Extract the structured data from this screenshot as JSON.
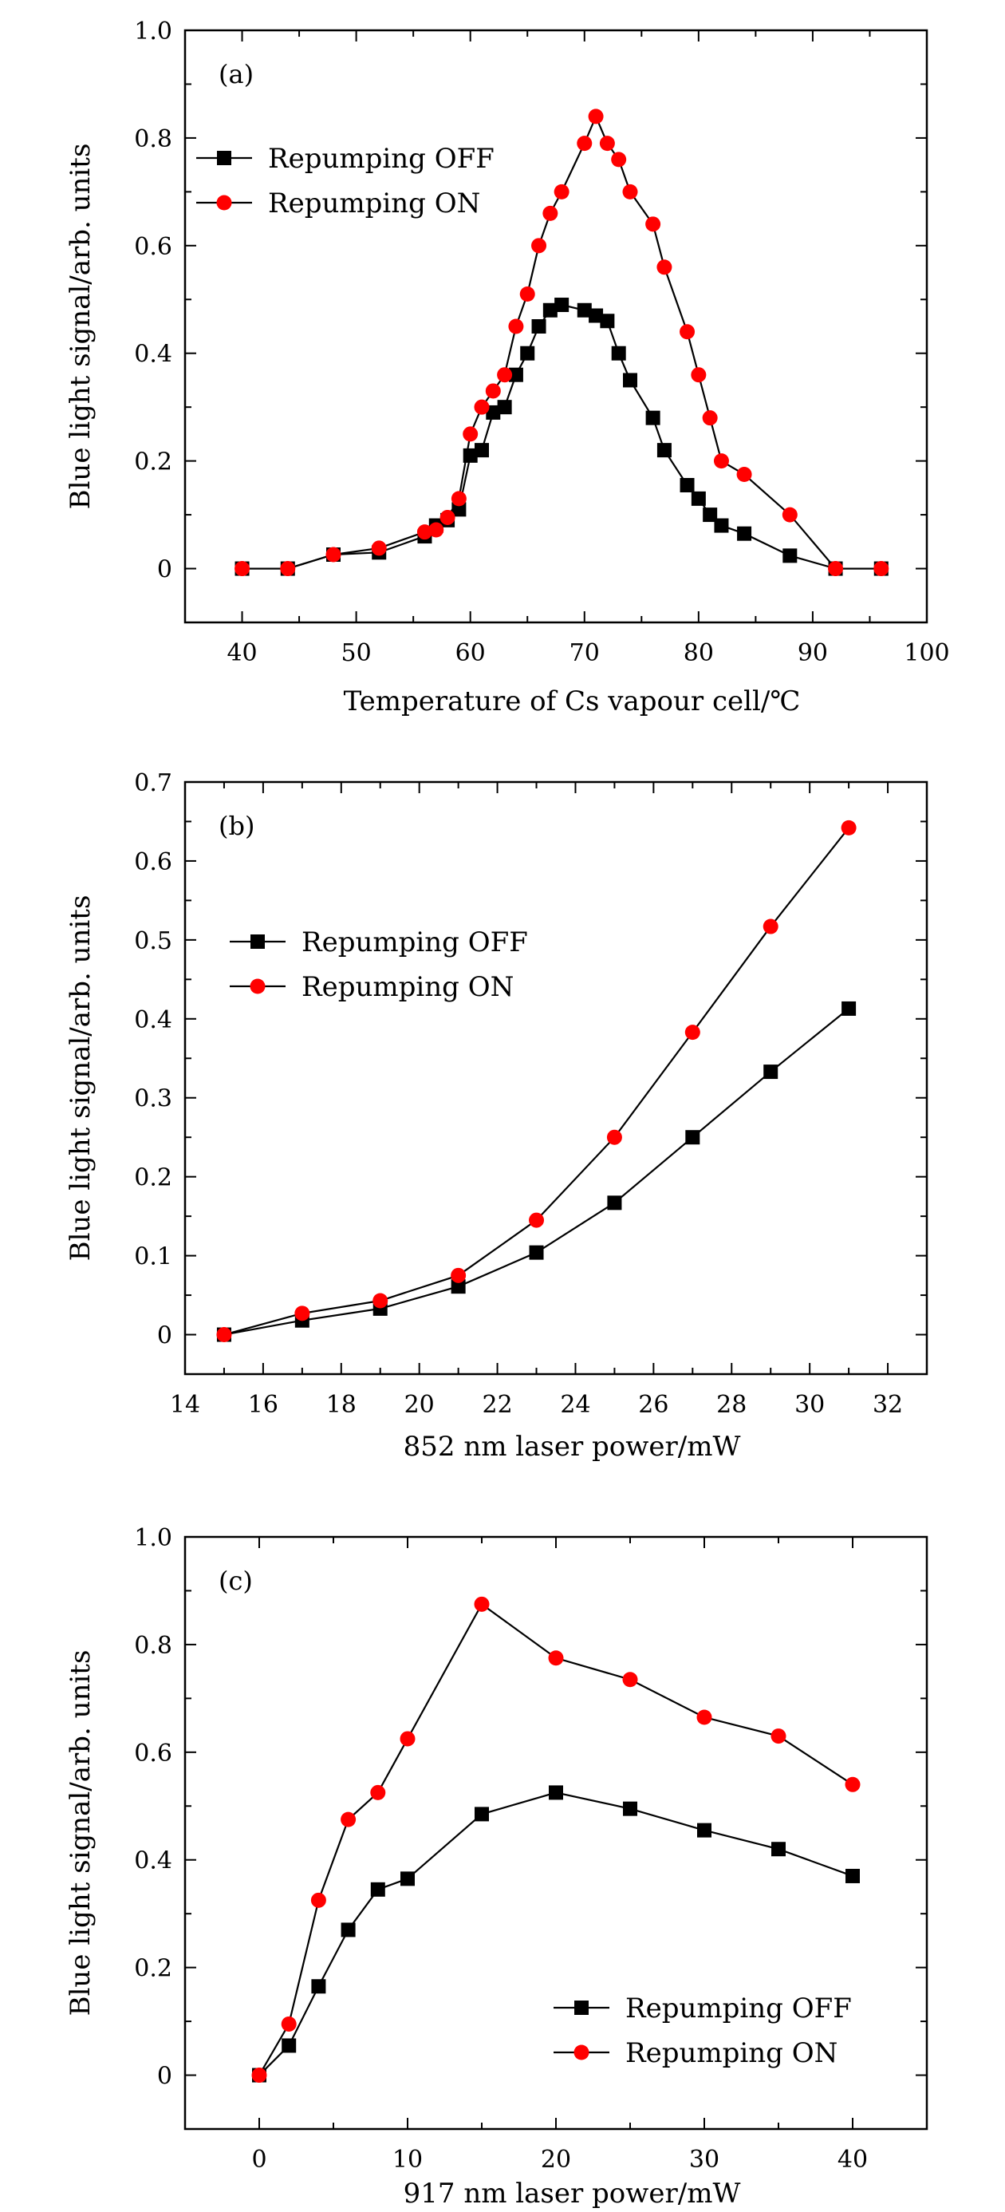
{
  "chart_data": [
    {
      "type": "line",
      "panel_label": "(a)",
      "xlabel": "Temperature of Cs vapour cell/℃",
      "ylabel": "Blue light signal/arb. units",
      "xlim": [
        35,
        100
      ],
      "ylim": [
        -0.1,
        1.0
      ],
      "xticks": [
        40,
        50,
        60,
        70,
        80,
        90,
        100
      ],
      "xtick_labels": [
        "40",
        "50",
        "60",
        "70",
        "80",
        "90",
        "100"
      ],
      "xminor": [
        35,
        45,
        55,
        65,
        75,
        85,
        95
      ],
      "yticks": [
        0,
        0.2,
        0.4,
        0.6,
        0.8,
        1.0
      ],
      "ytick_labels": [
        "0",
        "0.2",
        "0.4",
        "0.6",
        "0.8",
        "1.0"
      ],
      "yminor": [
        -0.1,
        0.1,
        0.3,
        0.5,
        0.7,
        0.9
      ],
      "legend_position": "upper-left",
      "series": [
        {
          "name": "Repumping OFF",
          "marker": "square",
          "color": "#000000",
          "x": [
            40,
            44,
            48,
            52,
            56,
            57,
            58,
            59,
            60,
            61,
            62,
            63,
            64,
            65,
            66,
            67,
            68,
            70,
            71,
            72,
            73,
            74,
            76,
            77,
            79,
            80,
            81,
            82,
            84,
            88,
            92,
            96
          ],
          "y": [
            0,
            0,
            0.026,
            0.03,
            0.06,
            0.08,
            0.09,
            0.11,
            0.21,
            0.22,
            0.29,
            0.3,
            0.36,
            0.4,
            0.45,
            0.48,
            0.49,
            0.48,
            0.47,
            0.46,
            0.4,
            0.35,
            0.28,
            0.22,
            0.155,
            0.13,
            0.1,
            0.08,
            0.065,
            0.024,
            0,
            0
          ]
        },
        {
          "name": "Repumping ON",
          "marker": "circle",
          "color": "#ff0000",
          "x": [
            40,
            44,
            48,
            52,
            56,
            57,
            58,
            59,
            60,
            61,
            62,
            63,
            64,
            65,
            66,
            67,
            68,
            70,
            71,
            72,
            73,
            74,
            76,
            77,
            79,
            80,
            81,
            82,
            84,
            88,
            92,
            96
          ],
          "y": [
            0,
            0,
            0.026,
            0.038,
            0.068,
            0.072,
            0.095,
            0.13,
            0.25,
            0.3,
            0.33,
            0.36,
            0.45,
            0.51,
            0.6,
            0.66,
            0.7,
            0.79,
            0.84,
            0.79,
            0.76,
            0.7,
            0.64,
            0.56,
            0.44,
            0.36,
            0.28,
            0.2,
            0.175,
            0.1,
            0,
            0
          ]
        }
      ]
    },
    {
      "type": "line",
      "panel_label": "(b)",
      "xlabel": "852 nm laser power/mW",
      "ylabel": "Blue light signal/arb. units",
      "xlim": [
        14,
        33
      ],
      "ylim": [
        -0.05,
        0.7
      ],
      "xticks": [
        14,
        16,
        18,
        20,
        22,
        24,
        26,
        28,
        30,
        32
      ],
      "xtick_labels": [
        "14",
        "16",
        "18",
        "20",
        "22",
        "24",
        "26",
        "28",
        "30",
        "32"
      ],
      "xminor": [
        15,
        17,
        19,
        21,
        23,
        25,
        27,
        29,
        31,
        33
      ],
      "yticks": [
        0,
        0.1,
        0.2,
        0.3,
        0.4,
        0.5,
        0.6,
        0.7
      ],
      "ytick_labels": [
        "0",
        "0.1",
        "0.2",
        "0.3",
        "0.4",
        "0.5",
        "0.6",
        "0.7"
      ],
      "yminor": [
        -0.05,
        0.05,
        0.15,
        0.25,
        0.35,
        0.45,
        0.55,
        0.65
      ],
      "legend_position": "upper-left",
      "series": [
        {
          "name": "Repumping OFF",
          "marker": "square",
          "color": "#000000",
          "x": [
            15,
            17,
            19,
            21,
            23,
            25,
            27,
            29,
            31
          ],
          "y": [
            0,
            0.018,
            0.033,
            0.061,
            0.104,
            0.167,
            0.25,
            0.333,
            0.413
          ]
        },
        {
          "name": "Repumping ON",
          "marker": "circle",
          "color": "#ff0000",
          "x": [
            15,
            17,
            19,
            21,
            23,
            25,
            27,
            29,
            31
          ],
          "y": [
            0,
            0.027,
            0.043,
            0.075,
            0.145,
            0.25,
            0.383,
            0.517,
            0.642
          ]
        }
      ]
    },
    {
      "type": "line",
      "panel_label": "(c)",
      "xlabel": "917 nm laser power/mW",
      "ylabel": "Blue light signal/arb. units",
      "xlim": [
        -5,
        45
      ],
      "ylim": [
        -0.1,
        1.0
      ],
      "xticks": [
        0,
        10,
        20,
        30,
        40
      ],
      "xtick_labels": [
        "0",
        "10",
        "20",
        "30",
        "40"
      ],
      "xminor": [
        -5,
        5,
        15,
        25,
        35,
        45
      ],
      "yticks": [
        0,
        0.2,
        0.4,
        0.6,
        0.8,
        1.0
      ],
      "ytick_labels": [
        "0",
        "0.2",
        "0.4",
        "0.6",
        "0.8",
        "1.0"
      ],
      "yminor": [
        -0.1,
        0.1,
        0.3,
        0.5,
        0.7,
        0.9
      ],
      "legend_position": "lower-right",
      "series": [
        {
          "name": "Repumping OFF",
          "marker": "square",
          "color": "#000000",
          "x": [
            0,
            2,
            4,
            6,
            8,
            10,
            15,
            20,
            25,
            30,
            35,
            40
          ],
          "y": [
            0,
            0.055,
            0.165,
            0.27,
            0.345,
            0.365,
            0.485,
            0.525,
            0.495,
            0.455,
            0.42,
            0.37
          ]
        },
        {
          "name": "Repumping ON",
          "marker": "circle",
          "color": "#ff0000",
          "x": [
            0,
            2,
            4,
            6,
            8,
            10,
            15,
            20,
            25,
            30,
            35,
            40
          ],
          "y": [
            0,
            0.095,
            0.325,
            0.475,
            0.525,
            0.625,
            0.875,
            0.775,
            0.735,
            0.665,
            0.63,
            0.54
          ]
        }
      ]
    }
  ]
}
